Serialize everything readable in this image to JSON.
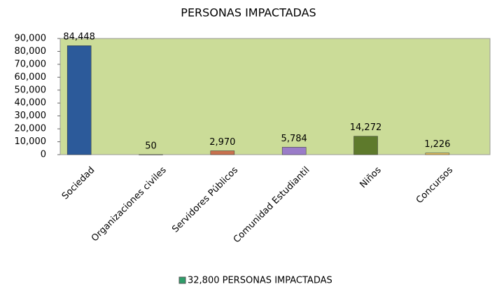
{
  "chart_data": {
    "type": "bar",
    "title": "PERSONAS IMPACTADAS",
    "categories": [
      "Sociedad",
      "Organizaciones civiles",
      "Servidores Públicos",
      "Comunidad Estudiantil",
      "Niños",
      "Concursos"
    ],
    "values": [
      84448,
      50,
      2970,
      5784,
      14272,
      1226
    ],
    "value_labels": [
      "84,448",
      "50",
      "2,970",
      "5,784",
      "14,272",
      "1,226"
    ],
    "colors": [
      "#2c5a9a",
      "#9aa0a8",
      "#c8714e",
      "#9a7cc8",
      "#5e7a2c",
      "#e3bd5c"
    ],
    "ylim": [
      0,
      90000
    ],
    "yticks": [
      0,
      {
        "value": 10000,
        "label": "10,000"
      },
      {
        "value": 20000,
        "label": "20,000"
      },
      {
        "value": 30000,
        "label": "30,000"
      },
      {
        "value": 40000,
        "label": "40,000"
      },
      {
        "value": 50000,
        "label": "50,000"
      },
      {
        "value": 60000,
        "label": "60,000"
      },
      {
        "value": 70000,
        "label": "70,000"
      },
      {
        "value": 80000,
        "label": "80,000"
      },
      {
        "value": 90000,
        "label": "90,000"
      }
    ],
    "legend": {
      "label": "32,800 PERSONAS IMPACTADAS",
      "color": "#2f9e6a"
    }
  }
}
